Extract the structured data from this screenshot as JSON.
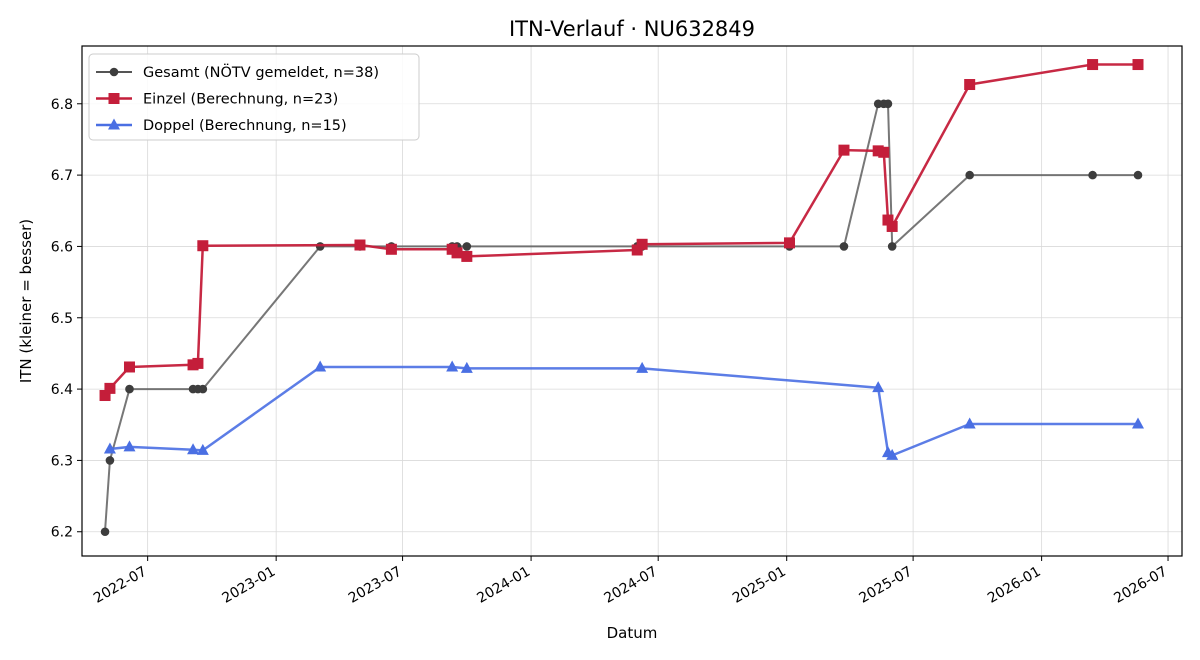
{
  "chart_data": {
    "type": "line",
    "title": "ITN-Verlauf · NU632849",
    "xlabel": "Datum",
    "ylabel": "ITN  (kleiner = besser)",
    "x_axis": "date",
    "xlim": [
      "2022-03-29",
      "2026-07-21"
    ],
    "ylim": [
      6.166,
      6.881
    ],
    "x_ticks": [
      "2022-07",
      "2023-01",
      "2023-07",
      "2024-01",
      "2024-07",
      "2025-01",
      "2025-07",
      "2026-01",
      "2026-07"
    ],
    "y_ticks": [
      "6.2",
      "6.3",
      "6.4",
      "6.5",
      "6.6",
      "6.7",
      "6.8"
    ],
    "grid": true,
    "legend_position": "top-left",
    "series": [
      {
        "name": "Gesamt (NÖTV gemeldet, n=38)",
        "color": "#555555",
        "marker": "circle",
        "points": [
          {
            "x": "2022-05-01",
            "y": 6.2
          },
          {
            "x": "2022-05-08",
            "y": 6.3
          },
          {
            "x": "2022-06-05",
            "y": 6.4
          },
          {
            "x": "2022-09-04",
            "y": 6.4
          },
          {
            "x": "2022-09-11",
            "y": 6.4
          },
          {
            "x": "2022-09-18",
            "y": 6.4
          },
          {
            "x": "2023-03-05",
            "y": 6.6
          },
          {
            "x": "2023-05-01",
            "y": 6.6
          },
          {
            "x": "2023-06-15",
            "y": 6.6
          },
          {
            "x": "2023-09-10",
            "y": 6.6
          },
          {
            "x": "2023-09-17",
            "y": 6.6
          },
          {
            "x": "2023-10-01",
            "y": 6.6
          },
          {
            "x": "2024-06-01",
            "y": 6.6
          },
          {
            "x": "2024-06-08",
            "y": 6.6
          },
          {
            "x": "2025-01-05",
            "y": 6.6
          },
          {
            "x": "2025-03-24",
            "y": 6.6
          },
          {
            "x": "2025-05-12",
            "y": 6.8
          },
          {
            "x": "2025-05-20",
            "y": 6.8
          },
          {
            "x": "2025-05-26",
            "y": 6.8
          },
          {
            "x": "2025-06-01",
            "y": 6.6
          },
          {
            "x": "2025-09-20",
            "y": 6.7
          },
          {
            "x": "2026-03-15",
            "y": 6.7
          },
          {
            "x": "2026-05-19",
            "y": 6.7
          }
        ]
      },
      {
        "name": "Einzel (Berechnung, n=23)",
        "color": "#c41e3a",
        "marker": "square",
        "points": [
          {
            "x": "2022-05-01",
            "y": 6.391
          },
          {
            "x": "2022-05-08",
            "y": 6.401
          },
          {
            "x": "2022-06-05",
            "y": 6.431
          },
          {
            "x": "2022-09-04",
            "y": 6.434
          },
          {
            "x": "2022-09-11",
            "y": 6.436
          },
          {
            "x": "2022-09-18",
            "y": 6.601
          },
          {
            "x": "2023-05-01",
            "y": 6.602
          },
          {
            "x": "2023-06-15",
            "y": 6.596
          },
          {
            "x": "2023-09-10",
            "y": 6.596
          },
          {
            "x": "2023-09-17",
            "y": 6.591
          },
          {
            "x": "2023-10-01",
            "y": 6.586
          },
          {
            "x": "2024-06-01",
            "y": 6.595
          },
          {
            "x": "2024-06-08",
            "y": 6.603
          },
          {
            "x": "2025-01-05",
            "y": 6.605
          },
          {
            "x": "2025-03-24",
            "y": 6.735
          },
          {
            "x": "2025-05-12",
            "y": 6.734
          },
          {
            "x": "2025-05-20",
            "y": 6.732
          },
          {
            "x": "2025-05-26",
            "y": 6.637
          },
          {
            "x": "2025-06-01",
            "y": 6.628
          },
          {
            "x": "2025-09-20",
            "y": 6.827
          },
          {
            "x": "2026-03-15",
            "y": 6.855
          },
          {
            "x": "2026-05-19",
            "y": 6.855
          }
        ]
      },
      {
        "name": "Doppel (Berechnung, n=15)",
        "color": "#4a6fe3",
        "marker": "triangle",
        "points": [
          {
            "x": "2022-05-08",
            "y": 6.316
          },
          {
            "x": "2022-06-05",
            "y": 6.319
          },
          {
            "x": "2022-09-04",
            "y": 6.315
          },
          {
            "x": "2022-09-18",
            "y": 6.314
          },
          {
            "x": "2023-03-05",
            "y": 6.431
          },
          {
            "x": "2023-09-10",
            "y": 6.431
          },
          {
            "x": "2023-10-01",
            "y": 6.429
          },
          {
            "x": "2024-06-08",
            "y": 6.429
          },
          {
            "x": "2025-05-12",
            "y": 6.402
          },
          {
            "x": "2025-05-26",
            "y": 6.311
          },
          {
            "x": "2025-06-01",
            "y": 6.307
          },
          {
            "x": "2025-09-20",
            "y": 6.351
          },
          {
            "x": "2026-05-19",
            "y": 6.351
          }
        ]
      }
    ]
  }
}
